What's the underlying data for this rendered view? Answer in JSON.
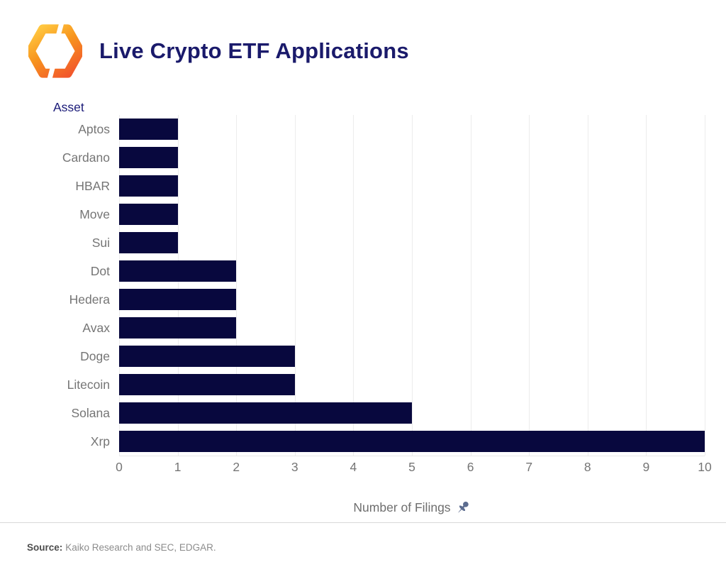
{
  "header": {
    "title": "Live Crypto ETF Applications",
    "logo": "kaiko-logo"
  },
  "chart_data": {
    "type": "bar",
    "orientation": "horizontal",
    "title": "Live Crypto ETF Applications",
    "y_axis_title": "Asset",
    "x_axis_title": "Number of Filings",
    "categories": [
      "Aptos",
      "Cardano",
      "HBAR",
      "Move",
      "Sui",
      "Dot",
      "Hedera",
      "Avax",
      "Doge",
      "Litecoin",
      "Solana",
      "Xrp"
    ],
    "values": [
      1,
      1,
      1,
      1,
      1,
      2,
      2,
      2,
      3,
      3,
      5,
      10
    ],
    "x_ticks": [
      0,
      1,
      2,
      3,
      4,
      5,
      6,
      7,
      8,
      9,
      10
    ],
    "xlim": [
      0,
      10
    ],
    "grid": "vertical-gridlines-on",
    "legend": "none",
    "bar_color": "#08083e",
    "axis_label_color": "#757575",
    "axis_title_icon": "pushpin-icon"
  },
  "footer": {
    "source_label": "Source:",
    "source_text": "Kaiko Research and SEC, EDGAR."
  },
  "colors": {
    "accent_navy": "#1a1a6b",
    "bar_navy": "#08083e",
    "logo_yellow": "#ffc63f",
    "logo_orange": "#f7941e",
    "logo_deep_orange": "#f2572b",
    "pin_slate": "#5c6c8f",
    "gridline": "#ececec",
    "divider": "#d9d9d9"
  }
}
